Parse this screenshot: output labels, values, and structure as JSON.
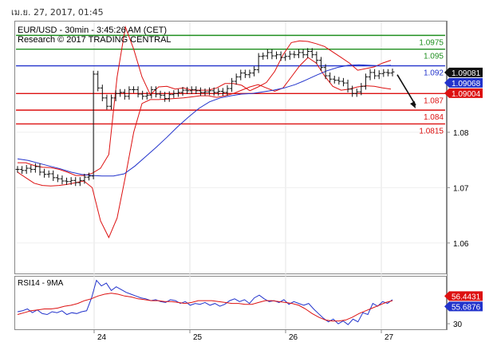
{
  "header": {
    "date_label": "เม.ย. 27, 2017, 01:45"
  },
  "chart_data": {
    "type": "candlestick",
    "title": "EUR/USD - 30min - 3:45:26 AM (CET)",
    "subtitle": "Research © 2017 TRADING CENTRAL",
    "ylim": [
      1.0545,
      1.1
    ],
    "y_ticks": [
      1.06,
      1.07,
      1.08
    ],
    "y_tick_labels": [
      "1.06",
      "1.07",
      "1.08"
    ],
    "x_ticks": [
      24,
      25,
      26,
      27
    ],
    "x_tick_labels": [
      "24",
      "25",
      "26",
      "27"
    ],
    "levels": [
      {
        "value": 1.0975,
        "label": "1.0975",
        "color": "#1f8f1f"
      },
      {
        "value": 1.095,
        "label": "1.095",
        "color": "#1f8f1f"
      },
      {
        "value": 1.092,
        "label": "1.092",
        "color": "#2233cc"
      },
      {
        "value": 1.087,
        "label": "1.087",
        "color": "#dd1111"
      },
      {
        "value": 1.084,
        "label": "1.084",
        "color": "#dd1111"
      },
      {
        "value": 1.0815,
        "label": "1.0815",
        "color": "#dd1111"
      }
    ],
    "price_tags": [
      {
        "value": 1.09081,
        "label": "1.09081",
        "bg": "#111111",
        "fg": "#ffffff"
      },
      {
        "value": 1.09068,
        "label": "1.09068",
        "bg": "#2233cc",
        "fg": "#ffffff"
      },
      {
        "value": 1.09004,
        "label": "1.09004",
        "bg": "#dd1111",
        "fg": "#ffffff"
      }
    ],
    "price_series": [
      1.0733,
      1.0731,
      1.0735,
      1.0733,
      1.0738,
      1.0728,
      1.0724,
      1.0725,
      1.0718,
      1.0716,
      1.0712,
      1.0711,
      1.0713,
      1.0709,
      1.0713,
      1.0719,
      1.0721,
      1.0905,
      1.088,
      1.0862,
      1.0847,
      1.0862,
      1.087,
      1.0872,
      1.0865,
      1.0877,
      1.0877,
      1.0869,
      1.0865,
      1.0867,
      1.0877,
      1.0869,
      1.0867,
      1.0861,
      1.0868,
      1.087,
      1.0872,
      1.0876,
      1.0875,
      1.0877,
      1.0875,
      1.0872,
      1.0873,
      1.0875,
      1.0872,
      1.0874,
      1.0872,
      1.0879,
      1.0892,
      1.09,
      1.0907,
      1.0904,
      1.0907,
      1.0913,
      1.0937,
      1.0938,
      1.0944,
      1.0938,
      1.094,
      1.0935,
      1.0937,
      1.0941,
      1.094,
      1.0944,
      1.094,
      1.0946,
      1.094,
      1.093,
      1.0917,
      1.0902,
      1.0896,
      1.0894,
      1.0892,
      1.0889,
      1.0878,
      1.087,
      1.0873,
      1.0883,
      1.09,
      1.0908,
      1.0902,
      1.0906,
      1.0908,
      1.0907,
      1.0909
    ],
    "upper_band": [
      1.0745,
      1.0745,
      1.074,
      1.0737,
      1.0736,
      1.0733,
      1.0728,
      1.0722,
      1.0722,
      1.0726,
      1.0735,
      1.076,
      1.09,
      1.099,
      1.095,
      1.09,
      1.0868,
      1.0882,
      1.0883,
      1.0878,
      1.088,
      1.0876,
      1.0876,
      1.0876,
      1.088,
      1.0888,
      1.0888,
      1.0885,
      1.0875,
      1.0882,
      1.089,
      1.091,
      1.094,
      1.0962,
      1.0965,
      1.0964,
      1.096,
      1.0955,
      1.0945,
      1.0935,
      1.0925,
      1.0912,
      1.0915,
      1.0918,
      1.0925,
      1.093
    ],
    "lower_band": [
      1.0728,
      1.0718,
      1.0708,
      1.0704,
      1.0703,
      1.0704,
      1.0706,
      1.0709,
      1.0712,
      1.07,
      1.064,
      1.061,
      1.0645,
      1.072,
      1.08,
      1.0852,
      1.0859,
      1.0859,
      1.086,
      1.0861,
      1.0862,
      1.0864,
      1.0866,
      1.0866,
      1.0863,
      1.0866,
      1.087,
      1.0876,
      1.0882,
      1.0886,
      1.088,
      1.0874,
      1.088,
      1.09,
      1.092,
      1.0935,
      1.0925,
      1.0902,
      1.0883,
      1.0876,
      1.0878,
      1.0882,
      1.0884,
      1.0883,
      1.088,
      1.0878
    ],
    "moving_average": [
      1.0752,
      1.0749,
      1.0744,
      1.0739,
      1.0734,
      1.0728,
      1.0724,
      1.0722,
      1.0721,
      1.0721,
      1.0725,
      1.0739,
      1.0756,
      1.0773,
      1.0791,
      1.081,
      1.0827,
      1.0843,
      1.0855,
      1.0862,
      1.0866,
      1.0869,
      1.087,
      1.0873,
      1.0876,
      1.088,
      1.0886,
      1.0894,
      1.0903,
      1.0911,
      1.0917,
      1.0921,
      1.0922,
      1.0921,
      1.092,
      1.0921
    ],
    "forecast_arrow": {
      "from": 1.0904,
      "to": 1.0843
    },
    "rsi": {
      "title": "RSI14 - 9MA",
      "ylim": [
        24,
        81
      ],
      "y_ticks": [
        30
      ],
      "y_tick_labels": [
        "30"
      ],
      "rsi_series": [
        43,
        44,
        46,
        42,
        45,
        41,
        40,
        43,
        42,
        44,
        40,
        42,
        41,
        43,
        44,
        58,
        77,
        71,
        74,
        66,
        70,
        67,
        64,
        62,
        60,
        58,
        57,
        55,
        56,
        54,
        53,
        56,
        55,
        52,
        54,
        50,
        52,
        51,
        53,
        50,
        52,
        49,
        51,
        55,
        57,
        54,
        56,
        52,
        58,
        61,
        57,
        54,
        55,
        53,
        56,
        51,
        54,
        52,
        50,
        52,
        46,
        41,
        36,
        32,
        35,
        30,
        33,
        29,
        35,
        32,
        42,
        40,
        52,
        49,
        54,
        52,
        56
      ],
      "ma_series": [
        40,
        42,
        44,
        45,
        46,
        46,
        47,
        49,
        50,
        52,
        55,
        57,
        60,
        62,
        63,
        62,
        60,
        59,
        57,
        56,
        55,
        55,
        54,
        54,
        53,
        52,
        53,
        55,
        55,
        55,
        54,
        53,
        52,
        52,
        51,
        51,
        53,
        55,
        55,
        54,
        53,
        52,
        50,
        46,
        41,
        37,
        34,
        33,
        33,
        34,
        37,
        41,
        44,
        47,
        50,
        53,
        55
      ],
      "tags": [
        {
          "value": 56.4431,
          "label": "56.4431",
          "bg": "#dd1111",
          "fg": "#ffffff"
        },
        {
          "value": 55.6876,
          "label": "55.6876",
          "bg": "#2233cc",
          "fg": "#ffffff"
        }
      ]
    }
  }
}
